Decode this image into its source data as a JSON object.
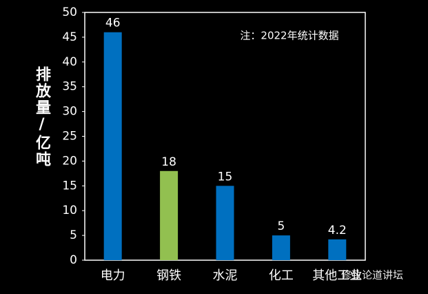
{
  "chart_data": {
    "type": "bar",
    "y_label": "排放量/亿吨",
    "annotation": "注：2022年统计数据",
    "watermark": "修致论道讲坛",
    "categories": [
      "电力",
      "钢铁",
      "水泥",
      "化工",
      "其他工业"
    ],
    "values": [
      46,
      18,
      15,
      5,
      4.2
    ],
    "colors": [
      "#0070c0",
      "#92c050",
      "#0070c0",
      "#0070c0",
      "#0070c0"
    ],
    "ylim": [
      0,
      50
    ],
    "yticks": [
      0,
      5,
      10,
      15,
      20,
      25,
      30,
      35,
      40,
      45,
      50
    ]
  }
}
